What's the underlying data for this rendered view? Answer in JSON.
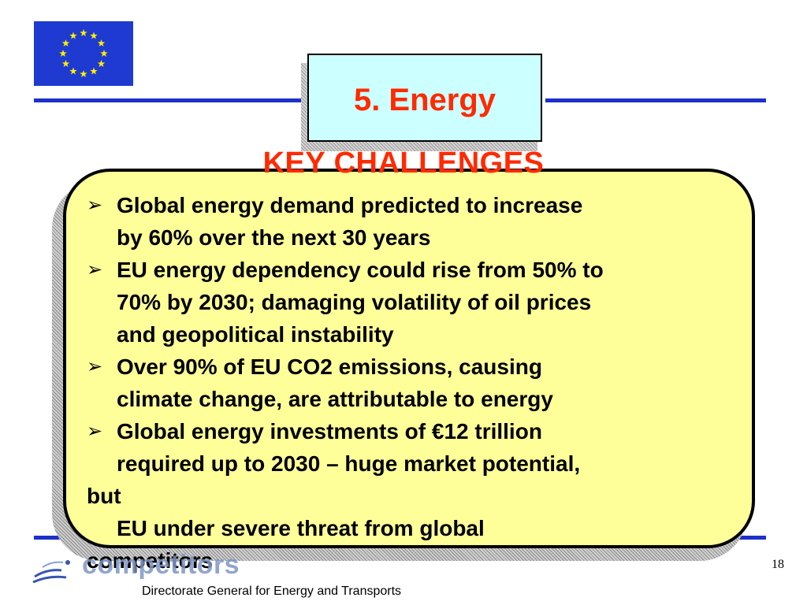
{
  "slide": {
    "title": "5. Energy",
    "subtitle": "KEY CHALLENGES",
    "bullet_marker": "➢",
    "bullets": [
      {
        "lines": [
          "Global energy demand predicted to increase",
          "by 60% over the next 30 years"
        ]
      },
      {
        "lines": [
          "EU energy dependency could rise from 50% to",
          "70% by 2030; damaging volatility of oil prices",
          "and geopolitical instability"
        ]
      },
      {
        "lines": [
          "Over 90% of EU CO2 emissions, causing",
          "climate change, are attributable to energy"
        ]
      },
      {
        "lines": [
          "Global energy investments of €12 trillion",
          "required up to 2030 – huge market potential,",
          "but",
          "EU under severe threat from global",
          "competitors"
        ]
      }
    ],
    "footer": "Directorate General for Energy and Transports",
    "page_number": "18",
    "logo_text": "competitors"
  },
  "colors": {
    "title_red": "#ff2a00",
    "title_box_bg": "#ccffff",
    "panel_bg": "#ffff99",
    "rule_blue": "#1d31c8",
    "flag_blue": "#1f3ad0",
    "star_yellow": "#ffee00"
  },
  "icons": {
    "flag": "eu-flag-icon",
    "bullet": "arrow-bullet-icon",
    "logo": "dg-tren-logo-icon"
  }
}
